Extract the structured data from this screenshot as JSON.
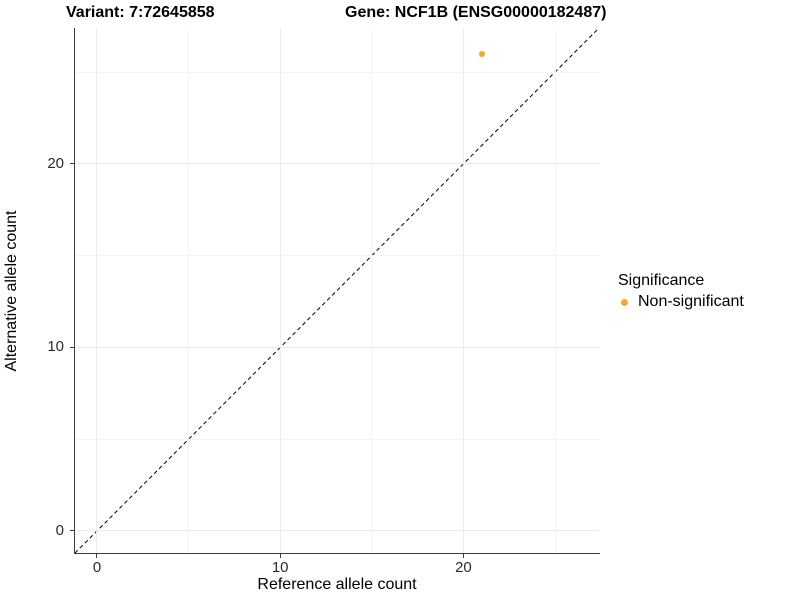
{
  "titles": {
    "variant": "Variant: 7:72645858",
    "gene": "Gene: NCF1B (ENSG00000182487)"
  },
  "chart_data": {
    "type": "scatter",
    "title": "Variant: 7:72645858   Gene: NCF1B (ENSG00000182487)",
    "xlabel": "Reference allele count",
    "ylabel": "Alternative allele count",
    "xlim": [
      -1.2,
      27.4
    ],
    "ylim": [
      -1.2,
      27.4
    ],
    "x_ticks": [
      0,
      10,
      20
    ],
    "y_ticks": [
      0,
      10,
      20
    ],
    "x_minor_gridlines": [
      5,
      15,
      25
    ],
    "y_minor_gridlines": [
      5,
      15,
      25
    ],
    "grid": "major and minor, light gray on white",
    "series": [
      {
        "name": "Non-significant",
        "color": "#F9A42C",
        "points": [
          {
            "x": 21,
            "y": 26
          }
        ]
      }
    ],
    "reference_line": {
      "type": "identity y=x",
      "slope": 1,
      "intercept": 0,
      "style": "dashed",
      "color": "#000000"
    },
    "legend": {
      "position": "right",
      "title": "Significance",
      "items": [
        {
          "label": "Non-significant",
          "color": "#F9A42C"
        }
      ]
    },
    "colors": {
      "point": "#F9A42C",
      "grid_major": "#EBEBEB",
      "grid_minor": "#F4F4F4",
      "axis_line": "#3C3C3C",
      "background": "#FFFFFF"
    }
  }
}
